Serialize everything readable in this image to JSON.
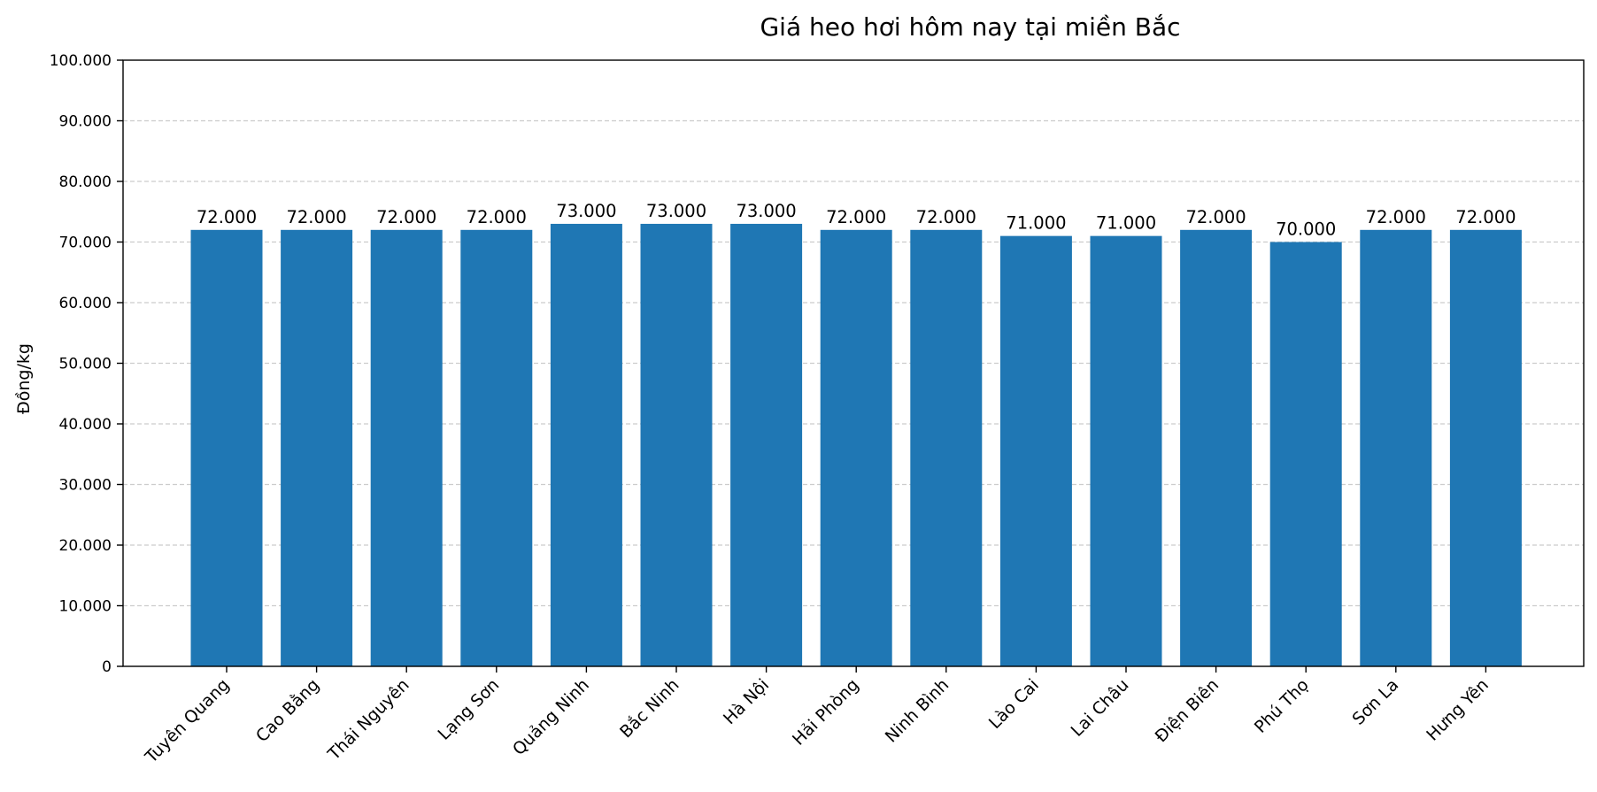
{
  "chart_data": {
    "type": "bar",
    "title": "Giá heo hơi hôm nay tại miền Bắc",
    "xlabel": "",
    "ylabel": "Đồng/kg",
    "categories": [
      "Tuyên Quang",
      "Cao Bằng",
      "Thái Nguyên",
      "Lạng Sơn",
      "Quảng Ninh",
      "Bắc Ninh",
      "Hà Nội",
      "Hải Phòng",
      "Ninh Bình",
      "Lào Cai",
      "Lai Châu",
      "Điện Biên",
      "Phú Thọ",
      "Sơn La",
      "Hưng Yên"
    ],
    "values": [
      72000,
      72000,
      72000,
      72000,
      73000,
      73000,
      73000,
      72000,
      72000,
      71000,
      71000,
      72000,
      70000,
      72000,
      72000
    ],
    "data_labels": [
      "72.000",
      "72.000",
      "72.000",
      "72.000",
      "73.000",
      "73.000",
      "73.000",
      "72.000",
      "72.000",
      "71.000",
      "71.000",
      "72.000",
      "70.000",
      "72.000",
      "72.000"
    ],
    "ylim": [
      0,
      100000
    ],
    "yticks": [
      0,
      10000,
      20000,
      30000,
      40000,
      50000,
      60000,
      70000,
      80000,
      90000,
      100000
    ],
    "ytick_labels": [
      "0",
      "10.000",
      "20.000",
      "30.000",
      "40.000",
      "50.000",
      "60.000",
      "70.000",
      "80.000",
      "90.000",
      "100.000"
    ],
    "grid": "y-dashed",
    "legend": "none",
    "colors": {
      "bar": "#1f77b4",
      "grid": "#cccccc",
      "axis": "#000000"
    }
  }
}
